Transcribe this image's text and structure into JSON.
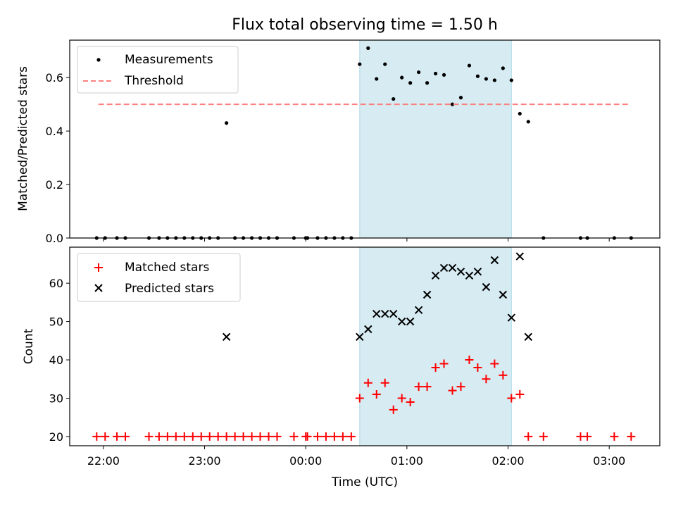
{
  "chart_data": [
    {
      "type": "scatter",
      "title": "Flux total observing time = 1.50 h",
      "xlabel": "",
      "ylabel": "Matched/Predicted stars",
      "ylim": [
        0,
        0.74
      ],
      "xlim": [
        "21:40",
        "03:30"
      ],
      "yticks": [
        "0.0",
        "0.2",
        "0.4",
        "0.6"
      ],
      "grid": false,
      "legend_position": "top-left",
      "shaded_interval": {
        "start": "00:32",
        "end": "02:02",
        "color": "#add8e6"
      },
      "series": [
        {
          "name": "Measurements",
          "marker": "dot",
          "color": "#000000",
          "points": [
            [
              "21:56",
              0
            ],
            [
              "22:01",
              0
            ],
            [
              "22:08",
              0
            ],
            [
              "22:13",
              0
            ],
            [
              "22:27",
              0
            ],
            [
              "22:33",
              0
            ],
            [
              "22:38",
              0
            ],
            [
              "22:43",
              0
            ],
            [
              "22:48",
              0
            ],
            [
              "22:53",
              0
            ],
            [
              "22:58",
              0
            ],
            [
              "23:03",
              0
            ],
            [
              "23:08",
              0
            ],
            [
              "23:13",
              0.43
            ],
            [
              "23:18",
              0
            ],
            [
              "23:23",
              0
            ],
            [
              "23:28",
              0
            ],
            [
              "23:33",
              0
            ],
            [
              "23:38",
              0
            ],
            [
              "23:43",
              0
            ],
            [
              "23:53",
              0
            ],
            [
              "00:00",
              0
            ],
            [
              "00:01",
              0
            ],
            [
              "00:07",
              0
            ],
            [
              "00:12",
              0
            ],
            [
              "00:17",
              0
            ],
            [
              "00:22",
              0
            ],
            [
              "00:27",
              0
            ],
            [
              "00:32",
              0.65
            ],
            [
              "00:37",
              0.71
            ],
            [
              "00:42",
              0.595
            ],
            [
              "00:47",
              0.65
            ],
            [
              "00:52",
              0.52
            ],
            [
              "00:57",
              0.6
            ],
            [
              "01:02",
              0.58
            ],
            [
              "01:07",
              0.62
            ],
            [
              "01:12",
              0.58
            ],
            [
              "01:17",
              0.615
            ],
            [
              "01:22",
              0.61
            ],
            [
              "01:27",
              0.5
            ],
            [
              "01:32",
              0.525
            ],
            [
              "01:37",
              0.645
            ],
            [
              "01:42",
              0.605
            ],
            [
              "01:47",
              0.595
            ],
            [
              "01:52",
              0.59
            ],
            [
              "01:57",
              0.635
            ],
            [
              "02:02",
              0.59
            ],
            [
              "02:07",
              0.465
            ],
            [
              "02:12",
              0.435
            ],
            [
              "02:21",
              0
            ],
            [
              "02:43",
              0
            ],
            [
              "02:47",
              0
            ],
            [
              "03:03",
              0
            ],
            [
              "03:13",
              0
            ]
          ]
        },
        {
          "name": "Threshold",
          "marker": "dashed-line",
          "color": "#ff7f7f",
          "points": [
            [
              "21:57",
              0.5
            ],
            [
              "03:12",
              0.5
            ]
          ]
        }
      ]
    },
    {
      "type": "scatter",
      "title": "",
      "xlabel": "Time (UTC)",
      "ylabel": "Count",
      "ylim": [
        17.6,
        69.4
      ],
      "xlim": [
        "21:40",
        "03:30"
      ],
      "yticks": [
        "20",
        "30",
        "40",
        "50",
        "60"
      ],
      "xticks": [
        "22:00",
        "23:00",
        "00:00",
        "01:00",
        "02:00",
        "03:00"
      ],
      "grid": false,
      "legend_position": "top-left",
      "shaded_interval": {
        "start": "00:32",
        "end": "02:02",
        "color": "#add8e6"
      },
      "series": [
        {
          "name": "Matched stars",
          "marker": "plus",
          "color": "#ff0000",
          "points": [
            [
              "21:56",
              20
            ],
            [
              "22:01",
              20
            ],
            [
              "22:08",
              20
            ],
            [
              "22:13",
              20
            ],
            [
              "22:27",
              20
            ],
            [
              "22:33",
              20
            ],
            [
              "22:38",
              20
            ],
            [
              "22:43",
              20
            ],
            [
              "22:48",
              20
            ],
            [
              "22:53",
              20
            ],
            [
              "22:58",
              20
            ],
            [
              "23:03",
              20
            ],
            [
              "23:08",
              20
            ],
            [
              "23:13",
              20
            ],
            [
              "23:18",
              20
            ],
            [
              "23:23",
              20
            ],
            [
              "23:28",
              20
            ],
            [
              "23:33",
              20
            ],
            [
              "23:38",
              20
            ],
            [
              "23:43",
              20
            ],
            [
              "23:53",
              20
            ],
            [
              "00:00",
              20
            ],
            [
              "00:01",
              20
            ],
            [
              "00:07",
              20
            ],
            [
              "00:12",
              20
            ],
            [
              "00:17",
              20
            ],
            [
              "00:22",
              20
            ],
            [
              "00:27",
              20
            ],
            [
              "00:32",
              30
            ],
            [
              "00:37",
              34
            ],
            [
              "00:42",
              31
            ],
            [
              "00:47",
              34
            ],
            [
              "00:52",
              27
            ],
            [
              "00:57",
              30
            ],
            [
              "01:02",
              29
            ],
            [
              "01:07",
              33
            ],
            [
              "01:12",
              33
            ],
            [
              "01:17",
              38
            ],
            [
              "01:22",
              39
            ],
            [
              "01:27",
              32
            ],
            [
              "01:32",
              33
            ],
            [
              "01:37",
              40
            ],
            [
              "01:42",
              38
            ],
            [
              "01:47",
              35
            ],
            [
              "01:52",
              39
            ],
            [
              "01:57",
              36
            ],
            [
              "02:02",
              30
            ],
            [
              "02:07",
              31
            ],
            [
              "02:12",
              20
            ],
            [
              "02:21",
              20
            ],
            [
              "02:43",
              20
            ],
            [
              "02:47",
              20
            ],
            [
              "03:03",
              20
            ],
            [
              "03:13",
              20
            ]
          ]
        },
        {
          "name": "Predicted stars",
          "marker": "x",
          "color": "#000000",
          "points": [
            [
              "23:13",
              46
            ],
            [
              "00:32",
              46
            ],
            [
              "00:37",
              48
            ],
            [
              "00:42",
              52
            ],
            [
              "00:47",
              52
            ],
            [
              "00:52",
              52
            ],
            [
              "00:57",
              50
            ],
            [
              "01:02",
              50
            ],
            [
              "01:07",
              53
            ],
            [
              "01:12",
              57
            ],
            [
              "01:17",
              62
            ],
            [
              "01:22",
              64
            ],
            [
              "01:27",
              64
            ],
            [
              "01:32",
              63
            ],
            [
              "01:37",
              62
            ],
            [
              "01:42",
              63
            ],
            [
              "01:47",
              59
            ],
            [
              "01:52",
              66
            ],
            [
              "01:57",
              57
            ],
            [
              "02:02",
              51
            ],
            [
              "02:07",
              67
            ],
            [
              "02:12",
              46
            ]
          ]
        }
      ]
    }
  ]
}
